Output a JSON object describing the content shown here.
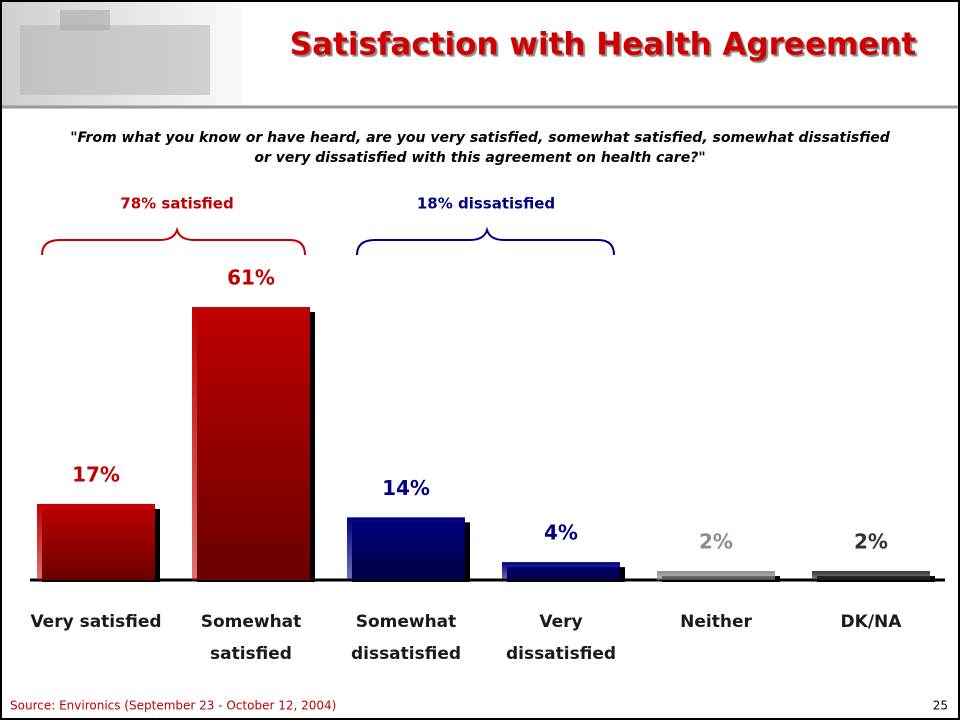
{
  "chart_data": {
    "type": "bar",
    "title": "Satisfaction with Health Agreement",
    "subtitle": "\"From what you know or have heard, are you very satisfied, somewhat satisfied, somewhat dissatisfied\nor very dissatisfied with this agreement on health care?\"",
    "annotations": [
      "78% satisfied",
      "18% dissatisfied"
    ],
    "categories": [
      "Very satisfied",
      "Somewhat\nsatisfied",
      "Somewhat\ndissatisfied",
      "Very\ndissatisfied",
      "Neither",
      "DK/NA"
    ],
    "values": [
      17,
      61,
      14,
      4,
      2,
      2
    ],
    "value_labels": [
      "17%",
      "61%",
      "14%",
      "4%",
      "2%",
      "2%"
    ],
    "colors": [
      "#c00000",
      "#c00000",
      "#000080",
      "#000080",
      "#8c8c8c",
      "#333333"
    ],
    "source": "Source: Environics (September 23 - October 12, 2004)",
    "page_number": "25"
  }
}
